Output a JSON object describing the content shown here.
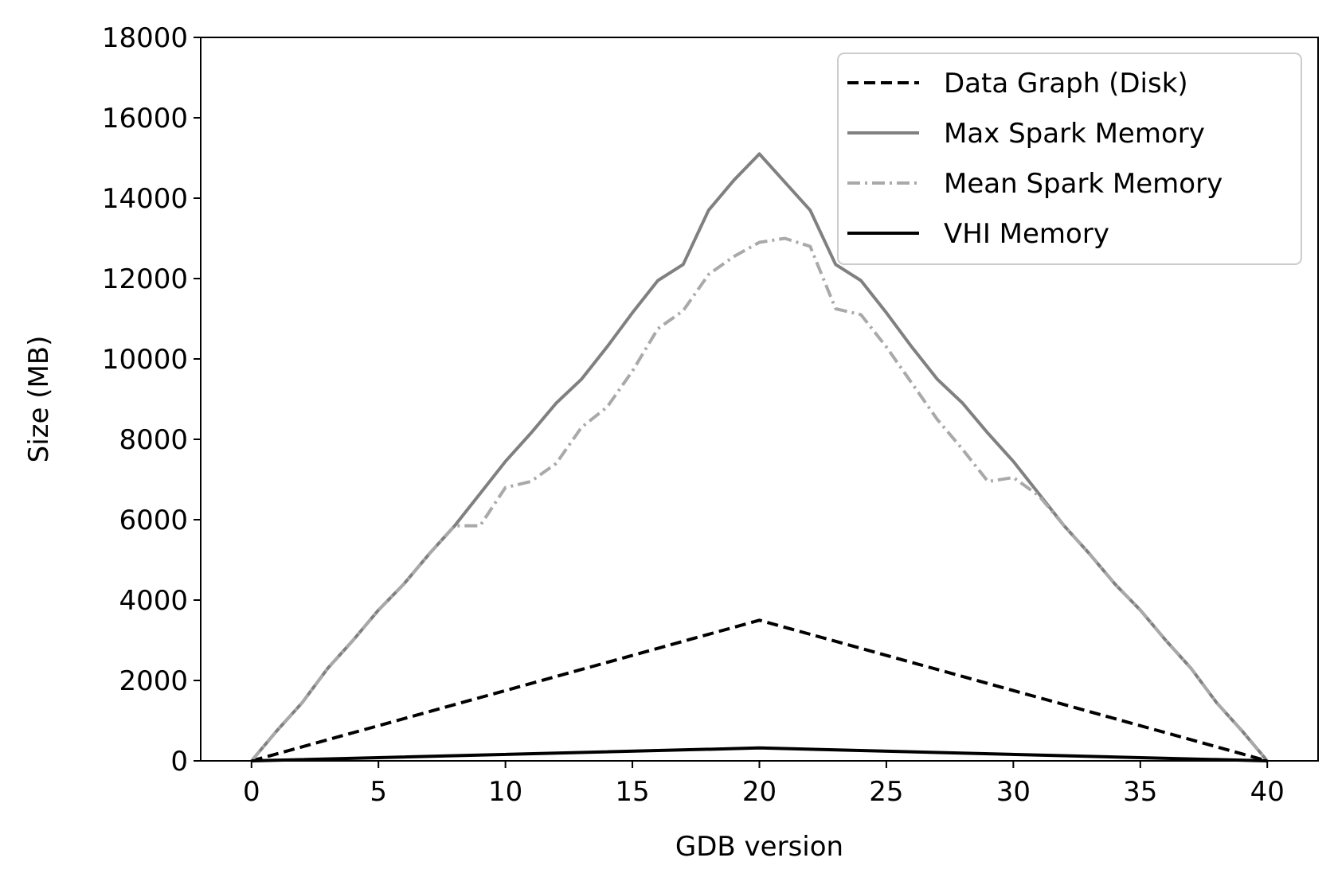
{
  "chart_data": {
    "type": "line",
    "title": "",
    "xlabel": "GDB version",
    "ylabel": "Size (MB)",
    "xlim": [
      -2,
      42
    ],
    "ylim": [
      0,
      18000
    ],
    "xticks": [
      0,
      5,
      10,
      15,
      20,
      25,
      30,
      35,
      40
    ],
    "yticks": [
      0,
      2000,
      4000,
      6000,
      8000,
      10000,
      12000,
      14000,
      16000,
      18000
    ],
    "grid": false,
    "legend_position": "top-right",
    "series": [
      {
        "name": "Data Graph (Disk)",
        "color": "#000000",
        "style": "dashed",
        "x": [
          0,
          20,
          40
        ],
        "values": [
          0,
          3500,
          0
        ]
      },
      {
        "name": "Max Spark Memory",
        "color": "#808080",
        "style": "solid",
        "x": [
          0,
          1,
          2,
          3,
          4,
          5,
          6,
          7,
          8,
          9,
          10,
          11,
          12,
          13,
          14,
          15,
          16,
          17,
          18,
          19,
          20,
          21,
          22,
          23,
          24,
          25,
          26,
          27,
          28,
          29,
          30,
          31,
          32,
          33,
          34,
          35,
          36,
          37,
          38,
          39,
          40
        ],
        "values": [
          0,
          750,
          1450,
          2300,
          3000,
          3750,
          4400,
          5150,
          5850,
          6650,
          7450,
          8150,
          8900,
          9500,
          10300,
          11150,
          11950,
          12350,
          13700,
          14450,
          15100,
          14400,
          13700,
          12350,
          11950,
          11150,
          10300,
          9500,
          8900,
          8150,
          7450,
          6650,
          5850,
          5150,
          4400,
          3750,
          3000,
          2300,
          1450,
          750,
          0
        ]
      },
      {
        "name": "Mean Spark Memory",
        "color": "#a9a9a9",
        "style": "dashdot",
        "x": [
          0,
          1,
          2,
          3,
          4,
          5,
          6,
          7,
          8,
          9,
          10,
          11,
          12,
          13,
          14,
          15,
          16,
          17,
          18,
          19,
          20,
          21,
          22,
          23,
          24,
          25,
          26,
          27,
          28,
          29,
          30,
          31,
          32,
          33,
          34,
          35,
          36,
          37,
          38,
          39,
          40
        ],
        "values": [
          0,
          750,
          1450,
          2300,
          3000,
          3750,
          4400,
          5150,
          5850,
          5850,
          6800,
          6950,
          7400,
          8300,
          8800,
          9700,
          10750,
          11200,
          12100,
          12550,
          12900,
          13000,
          12800,
          11250,
          11100,
          10300,
          9400,
          8500,
          7750,
          6950,
          7050,
          6600,
          5850,
          5150,
          4400,
          3750,
          3000,
          2300,
          1450,
          750,
          0
        ]
      },
      {
        "name": "VHI Memory",
        "color": "#000000",
        "style": "solid",
        "x": [
          0,
          20,
          40
        ],
        "values": [
          0,
          320,
          0
        ]
      }
    ]
  }
}
